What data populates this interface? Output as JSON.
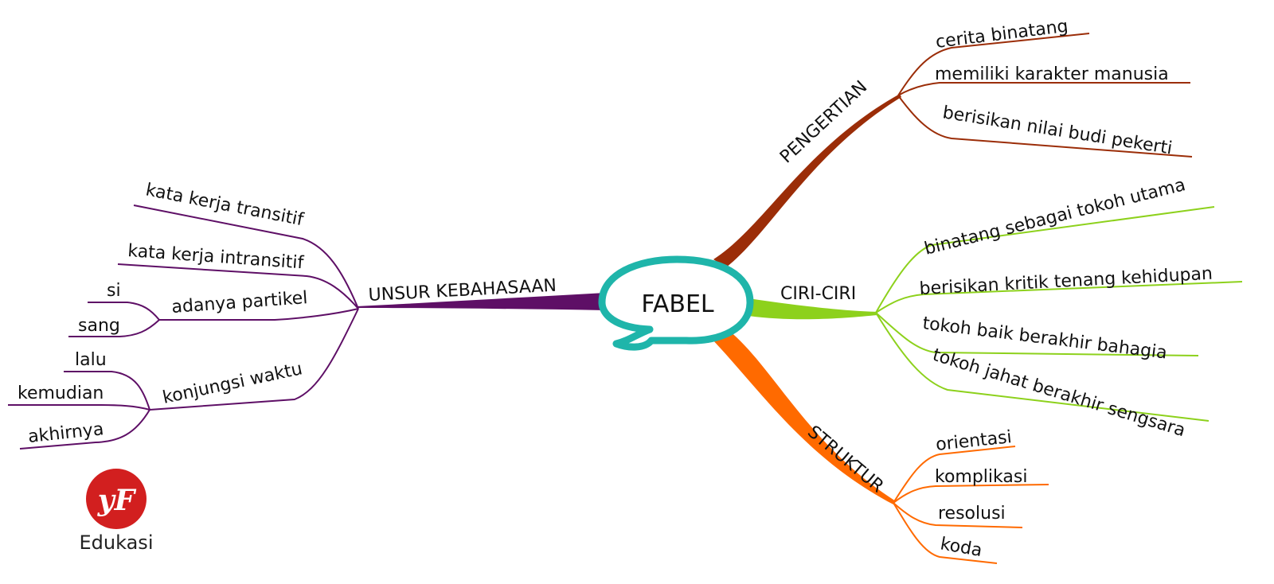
{
  "center": {
    "label": "FABEL"
  },
  "colors": {
    "center_outline": "#1fb5aa",
    "pengertian": "#9b2d08",
    "ciri": "#8dd11c",
    "struktur": "#ff6a00",
    "unsur": "#5e0f66",
    "brand_circle": "#d21f1f"
  },
  "branches": {
    "pengertian": {
      "label": "PENGERTIAN",
      "items": [
        "cerita binatang",
        "memiliki karakter manusia",
        "berisikan nilai budi pekerti"
      ]
    },
    "ciri": {
      "label": "CIRI-CIRI",
      "items": [
        "binatang sebagai tokoh utama",
        "berisikan kritik tenang kehidupan",
        "tokoh baik berakhir bahagia",
        "tokoh jahat berakhir sengsara"
      ]
    },
    "struktur": {
      "label": "STRUKTUR",
      "items": [
        "orientasi",
        "komplikasi",
        "resolusi",
        "koda"
      ]
    },
    "unsur": {
      "label": "UNSUR KEBAHASAAN",
      "items": [
        "kata kerja transitif",
        "kata kerja intransitif",
        "adanya partikel",
        "konjungsi waktu"
      ],
      "partikel": [
        "si",
        "sang"
      ],
      "konjungsi": [
        "lalu",
        "kemudian",
        "akhirnya"
      ]
    }
  },
  "brand": {
    "logo_text": "yF",
    "name": "Edukasi"
  }
}
